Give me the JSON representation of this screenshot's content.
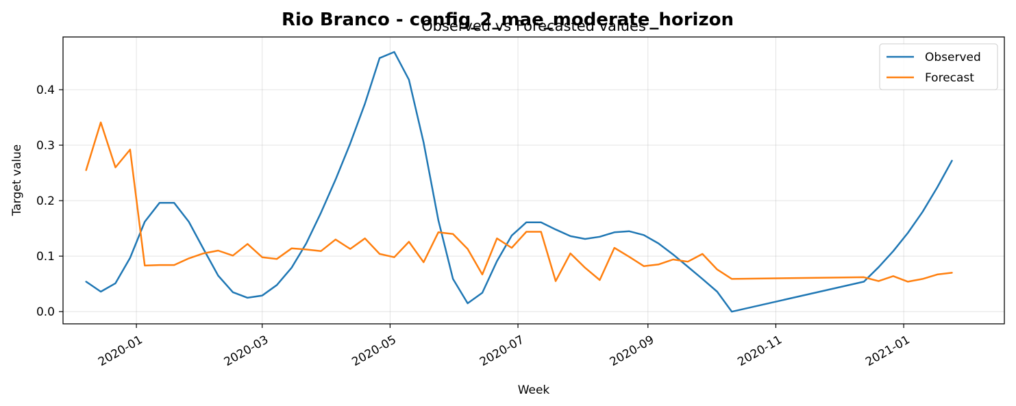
{
  "chart_data": {
    "type": "line",
    "title": "Rio Branco - config_2_mae_moderate_horizon",
    "subtitle": "Observed vs Forecasted values",
    "xlabel": "Week",
    "ylabel": "Target value",
    "grid": true,
    "legend_position": "top-right",
    "x_ticks": [
      "2020-01",
      "2020-03",
      "2020-05",
      "2020-07",
      "2020-09",
      "2020-11",
      "2021-01"
    ],
    "y_ticks": [
      0.0,
      0.1,
      0.2,
      0.3,
      0.4
    ],
    "y_tick_labels": [
      "0.0",
      "0.1",
      "0.2",
      "0.3",
      "0.4"
    ],
    "xlim": [
      "2019-11-27",
      "2021-02-18"
    ],
    "ylim": [
      -0.022,
      0.495
    ],
    "series": [
      {
        "name": "Observed",
        "color": "#1f77b4",
        "points": [
          [
            "2019-12-08",
            0.054
          ],
          [
            "2019-12-15",
            0.036
          ],
          [
            "2019-12-22",
            0.051
          ],
          [
            "2019-12-29",
            0.097
          ],
          [
            "2020-01-05",
            0.162
          ],
          [
            "2020-01-12",
            0.196
          ],
          [
            "2020-01-19",
            0.196
          ],
          [
            "2020-01-26",
            0.162
          ],
          [
            "2020-02-02",
            0.113
          ],
          [
            "2020-02-09",
            0.065
          ],
          [
            "2020-02-16",
            0.035
          ],
          [
            "2020-02-23",
            0.025
          ],
          [
            "2020-03-01",
            0.029
          ],
          [
            "2020-03-08",
            0.048
          ],
          [
            "2020-03-15",
            0.079
          ],
          [
            "2020-03-22",
            0.123
          ],
          [
            "2020-03-29",
            0.178
          ],
          [
            "2020-04-05",
            0.238
          ],
          [
            "2020-04-12",
            0.303
          ],
          [
            "2020-04-19",
            0.375
          ],
          [
            "2020-04-26",
            0.457
          ],
          [
            "2020-05-03",
            0.468
          ],
          [
            "2020-05-10",
            0.418
          ],
          [
            "2020-05-17",
            0.305
          ],
          [
            "2020-05-24",
            0.165
          ],
          [
            "2020-05-31",
            0.059
          ],
          [
            "2020-06-07",
            0.015
          ],
          [
            "2020-06-14",
            0.034
          ],
          [
            "2020-06-21",
            0.091
          ],
          [
            "2020-06-28",
            0.137
          ],
          [
            "2020-07-05",
            0.161
          ],
          [
            "2020-07-12",
            0.161
          ],
          [
            "2020-07-19",
            0.148
          ],
          [
            "2020-07-26",
            0.136
          ],
          [
            "2020-08-02",
            0.131
          ],
          [
            "2020-08-09",
            0.135
          ],
          [
            "2020-08-16",
            0.143
          ],
          [
            "2020-08-23",
            0.145
          ],
          [
            "2020-08-30",
            0.138
          ],
          [
            "2020-09-06",
            0.123
          ],
          [
            "2020-09-13",
            0.103
          ],
          [
            "2020-09-20",
            0.081
          ],
          [
            "2020-09-27",
            0.059
          ],
          [
            "2020-10-04",
            0.036
          ],
          [
            "2020-10-11",
            0.0
          ],
          [
            "2020-12-13",
            0.054
          ],
          [
            "2020-12-20",
            0.08
          ],
          [
            "2020-12-27",
            0.109
          ],
          [
            "2021-01-03",
            0.142
          ],
          [
            "2021-01-10",
            0.18
          ],
          [
            "2021-01-17",
            0.224
          ],
          [
            "2021-01-24",
            0.272
          ]
        ]
      },
      {
        "name": "Forecast",
        "color": "#ff7f0e",
        "points": [
          [
            "2019-12-08",
            0.255
          ],
          [
            "2019-12-15",
            0.341
          ],
          [
            "2019-12-22",
            0.26
          ],
          [
            "2019-12-29",
            0.292
          ],
          [
            "2020-01-05",
            0.083
          ],
          [
            "2020-01-12",
            0.084
          ],
          [
            "2020-01-19",
            0.084
          ],
          [
            "2020-01-26",
            0.096
          ],
          [
            "2020-02-02",
            0.105
          ],
          [
            "2020-02-09",
            0.11
          ],
          [
            "2020-02-16",
            0.101
          ],
          [
            "2020-02-23",
            0.122
          ],
          [
            "2020-03-01",
            0.098
          ],
          [
            "2020-03-08",
            0.095
          ],
          [
            "2020-03-15",
            0.114
          ],
          [
            "2020-03-22",
            0.112
          ],
          [
            "2020-03-29",
            0.109
          ],
          [
            "2020-04-05",
            0.13
          ],
          [
            "2020-04-12",
            0.113
          ],
          [
            "2020-04-19",
            0.132
          ],
          [
            "2020-04-26",
            0.104
          ],
          [
            "2020-05-03",
            0.098
          ],
          [
            "2020-05-10",
            0.126
          ],
          [
            "2020-05-17",
            0.089
          ],
          [
            "2020-05-24",
            0.143
          ],
          [
            "2020-05-31",
            0.14
          ],
          [
            "2020-06-07",
            0.113
          ],
          [
            "2020-06-14",
            0.067
          ],
          [
            "2020-06-21",
            0.132
          ],
          [
            "2020-06-28",
            0.115
          ],
          [
            "2020-07-05",
            0.144
          ],
          [
            "2020-07-12",
            0.144
          ],
          [
            "2020-07-19",
            0.055
          ],
          [
            "2020-07-26",
            0.105
          ],
          [
            "2020-08-02",
            0.079
          ],
          [
            "2020-08-09",
            0.057
          ],
          [
            "2020-08-16",
            0.115
          ],
          [
            "2020-08-23",
            0.099
          ],
          [
            "2020-08-30",
            0.082
          ],
          [
            "2020-09-06",
            0.085
          ],
          [
            "2020-09-13",
            0.094
          ],
          [
            "2020-09-20",
            0.09
          ],
          [
            "2020-09-27",
            0.104
          ],
          [
            "2020-10-04",
            0.076
          ],
          [
            "2020-10-11",
            0.059
          ],
          [
            "2020-12-13",
            0.062
          ],
          [
            "2020-12-20",
            0.055
          ],
          [
            "2020-12-27",
            0.064
          ],
          [
            "2021-01-03",
            0.054
          ],
          [
            "2021-01-10",
            0.059
          ],
          [
            "2021-01-17",
            0.067
          ],
          [
            "2021-01-24",
            0.07
          ]
        ]
      }
    ]
  }
}
